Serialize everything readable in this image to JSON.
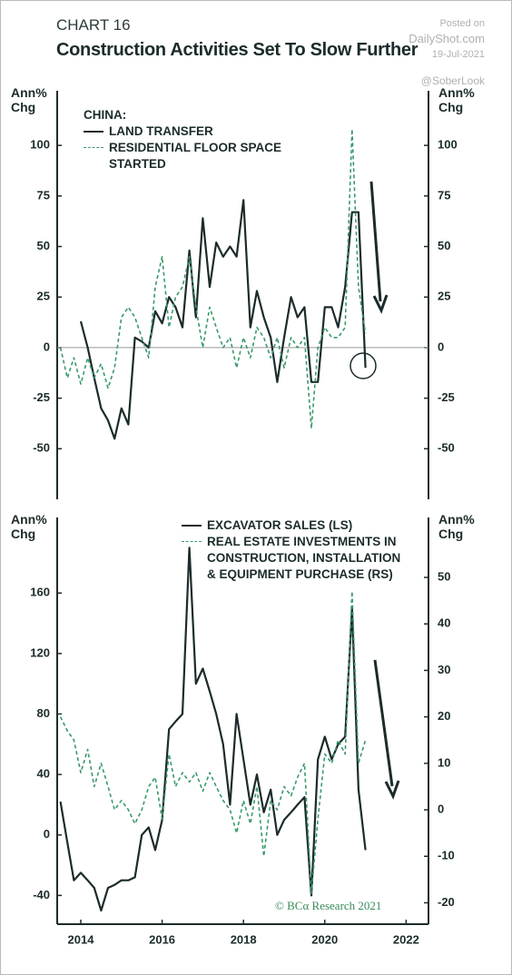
{
  "watermark": {
    "posted": "Posted on",
    "site": "DailyShot.com",
    "date": "19-Jul-2021",
    "handle": "@SoberLook"
  },
  "chart_data": [
    {
      "type": "line",
      "label": "CHART 16",
      "title": "Construction Activities Set To Slow Further",
      "ylabel": "Ann% Chg",
      "y2label": "Ann% Chg",
      "legend_title": "CHINA:",
      "legend": "upper left",
      "zero_line": true,
      "xlim": [
        2013.42,
        2022.55
      ],
      "ylim": [
        -75,
        127
      ],
      "yticks": [
        -50,
        -25,
        0,
        25,
        50,
        75,
        100
      ],
      "y2lim": [
        -75,
        127
      ],
      "y2ticks": [
        -50,
        -25,
        0,
        25,
        50,
        75,
        100
      ],
      "x": [
        2013.5,
        2013.67,
        2013.83,
        2014,
        2014.17,
        2014.33,
        2014.5,
        2014.67,
        2014.83,
        2015,
        2015.17,
        2015.33,
        2015.5,
        2015.67,
        2015.83,
        2016,
        2016.17,
        2016.33,
        2016.5,
        2016.67,
        2016.83,
        2017,
        2017.17,
        2017.33,
        2017.5,
        2017.67,
        2017.83,
        2018,
        2018.17,
        2018.33,
        2018.5,
        2018.67,
        2018.83,
        2019,
        2019.17,
        2019.33,
        2019.5,
        2019.67,
        2019.83,
        2020,
        2020.17,
        2020.33,
        2020.5,
        2020.67,
        2020.83,
        2021
      ],
      "series": [
        {
          "name": "LAND TRANSFER",
          "color": "#1c2b2b",
          "dashed": false,
          "values": [
            null,
            null,
            null,
            13,
            0,
            -15,
            -30,
            -36,
            -45,
            -30,
            -38,
            5,
            3,
            0,
            18,
            12,
            25,
            20,
            10,
            48,
            15,
            64,
            30,
            52,
            45,
            50,
            45,
            73,
            10,
            28,
            15,
            5,
            -17,
            5,
            25,
            15,
            20,
            -17,
            -17,
            20,
            20,
            10,
            30,
            67,
            67,
            -10
          ]
        },
        {
          "name": "RESIDENTIAL FLOOR SPACE STARTED",
          "color": "#3a9a6a",
          "dashed": true,
          "values": [
            0,
            -15,
            -5,
            -18,
            -5,
            -15,
            -8,
            -20,
            -10,
            15,
            20,
            15,
            5,
            -5,
            30,
            45,
            10,
            25,
            30,
            45,
            20,
            0,
            20,
            10,
            0,
            5,
            -10,
            5,
            -5,
            10,
            5,
            -5,
            5,
            -10,
            5,
            0,
            5,
            -40,
            0,
            10,
            5,
            5,
            10,
            108,
            30,
            7
          ]
        }
      ]
    },
    {
      "type": "line",
      "ylabel": "Ann% Chg",
      "y2label": "Ann% Chg",
      "legend": "upper center",
      "credit": "© BCα Research 2021",
      "xlim": [
        2013.42,
        2022.55
      ],
      "xticks": [
        2014,
        2016,
        2018,
        2020,
        2022
      ],
      "ylim": [
        -59,
        210
      ],
      "yticks": [
        -40,
        0,
        40,
        80,
        120,
        160
      ],
      "y2lim": [
        -24.6,
        62.9
      ],
      "y2ticks": [
        -20,
        -10,
        0,
        10,
        20,
        30,
        40,
        50
      ],
      "x": [
        2013.5,
        2013.67,
        2013.83,
        2014,
        2014.17,
        2014.33,
        2014.5,
        2014.67,
        2014.83,
        2015,
        2015.17,
        2015.33,
        2015.5,
        2015.67,
        2015.83,
        2016,
        2016.17,
        2016.33,
        2016.5,
        2016.67,
        2016.83,
        2017,
        2017.17,
        2017.33,
        2017.5,
        2017.67,
        2017.83,
        2018,
        2018.17,
        2018.33,
        2018.5,
        2018.67,
        2018.83,
        2019,
        2019.17,
        2019.33,
        2019.5,
        2019.67,
        2019.83,
        2020,
        2020.17,
        2020.33,
        2020.5,
        2020.67,
        2020.83,
        2021
      ],
      "series": [
        {
          "name": "EXCAVATOR SALES (LS)",
          "color": "#1c2b2b",
          "dashed": false,
          "axis": "y",
          "values": [
            22,
            -5,
            -30,
            -25,
            -30,
            -35,
            -50,
            -35,
            -33,
            -30,
            -30,
            -28,
            0,
            5,
            -10,
            10,
            70,
            75,
            80,
            190,
            100,
            110,
            95,
            80,
            60,
            20,
            80,
            50,
            20,
            40,
            15,
            30,
            0,
            10,
            15,
            20,
            25,
            -40,
            50,
            65,
            50,
            60,
            65,
            150,
            30,
            -10
          ]
        },
        {
          "name": "REAL ESTATE INVESTMENTS IN CONSTRUCTION, INSTALLATION & EQUIPMENT PURCHASE (RS)",
          "color": "#3a9a6a",
          "dashed": true,
          "axis": "y2",
          "values": [
            20,
            17,
            15,
            8,
            13,
            5,
            10,
            5,
            0,
            2,
            0,
            -3,
            0,
            5,
            7,
            -2,
            12,
            5,
            8,
            6,
            8,
            4,
            8,
            5,
            2,
            0,
            -5,
            2,
            -3,
            5,
            -10,
            2,
            0,
            5,
            3,
            7,
            10,
            -18,
            -2,
            12,
            10,
            15,
            12,
            47,
            10,
            15
          ]
        }
      ]
    }
  ]
}
